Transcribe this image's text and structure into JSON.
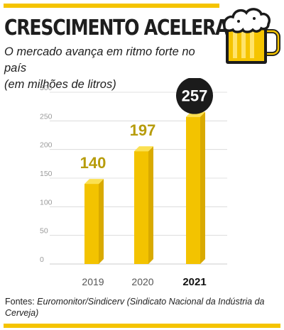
{
  "header": {
    "title": "CRESCIMENTO ACELERADO",
    "subtitle_line1": "O mercado avança em ritmo forte no país",
    "subtitle_line2": "(em milhões de litros)"
  },
  "icon": {
    "name": "beer-mug-icon"
  },
  "colors": {
    "accent": "#f5c400",
    "bar_face": "#f3c300",
    "bar_side": "#d9aa00",
    "bar_top": "#fbe052",
    "label_gold": "#b79c0c",
    "highlight_circle": "#1b1b1b",
    "axis_text": "#9a9a9a",
    "grid": "#d6d6d6"
  },
  "chart_data": {
    "type": "bar",
    "categories": [
      "2019",
      "2020",
      "2021"
    ],
    "values": [
      140,
      197,
      257
    ],
    "ylim": [
      0,
      300
    ],
    "yticks": [
      0,
      50,
      100,
      150,
      200,
      250,
      300
    ],
    "grid": true,
    "highlighted_category": "2021",
    "value_labels": [
      "140",
      "197",
      "257"
    ]
  },
  "source": {
    "prefix": "Fontes: ",
    "text": "Euromonitor/Sindicerv (Sindicato Nacional da Indústria da Cerveja)"
  }
}
